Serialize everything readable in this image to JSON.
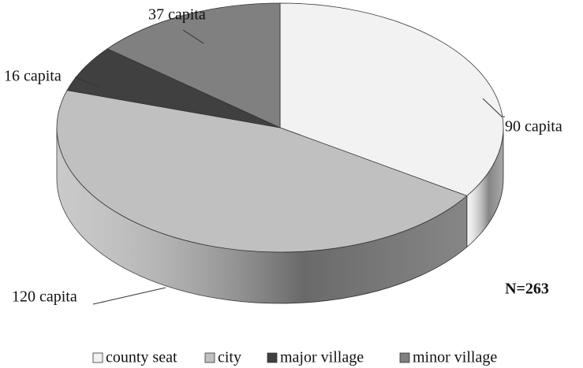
{
  "chart_data": {
    "type": "pie3d",
    "categories": [
      "county seat",
      "city",
      "major village",
      "minor village"
    ],
    "values": [
      90,
      120,
      16,
      37
    ],
    "value_labels": [
      "90 capita",
      "120 capita",
      "16 capita",
      "37 capita"
    ],
    "colors": [
      "#f2f2f2",
      "#c0c0c0",
      "#404040",
      "#808080"
    ],
    "annotation": "N=263",
    "legend": "bottom"
  }
}
